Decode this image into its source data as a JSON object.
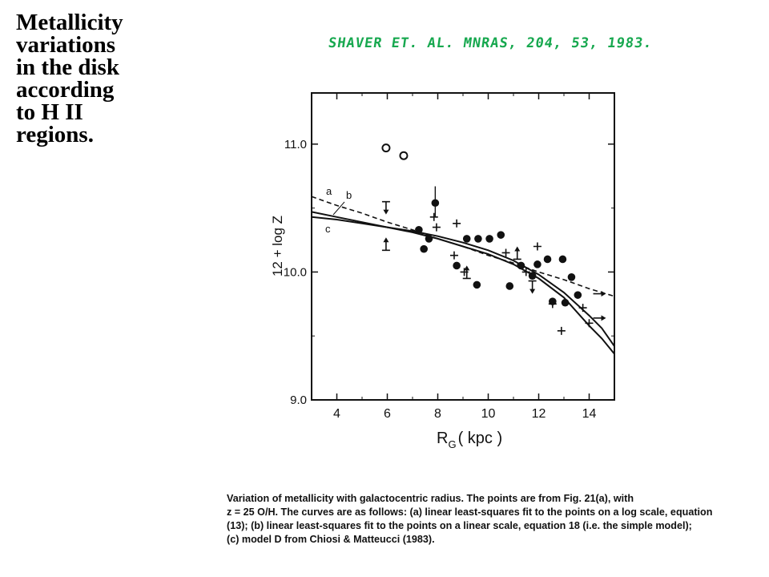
{
  "slide": {
    "title": "Metallicity\nvariations\nin the disk\naccording\nto H II\nregions.",
    "handwritten_reference": "SHAVER ET. AL.   MNRAS, 204, 53, 1983.",
    "caption_lines": [
      "Variation of metallicity with galactocentric radius. The points are from Fig. 21(a), with",
      "z = 25 O/H. The curves are as follows: (a) linear least-squares fit to the points on a log scale, equation",
      "(13); (b) linear least-squares fit to the points on a linear scale, equation 18 (i.e. the simple model);",
      "(c) model D from Chiosi & Matteucci (1983)."
    ]
  },
  "chart_data": {
    "type": "scatter",
    "xlabel_main": "R",
    "xlabel_sub": "G",
    "xlabel_unit": "( kpc )",
    "ylabel": "12 + log Z",
    "xlim": [
      3,
      15
    ],
    "ylim": [
      9.0,
      11.4
    ],
    "xticks": [
      "4",
      "6",
      "8",
      "10",
      "12",
      "14"
    ],
    "yticks": [
      "9.0",
      "10.0",
      "11.0"
    ],
    "filled_points": [
      {
        "x": 7.25,
        "y": 10.33
      },
      {
        "x": 7.45,
        "y": 10.18
      },
      {
        "x": 7.65,
        "y": 10.26
      },
      {
        "x": 7.9,
        "y": 10.54
      },
      {
        "x": 8.75,
        "y": 10.05
      },
      {
        "x": 9.55,
        "y": 9.9
      },
      {
        "x": 9.15,
        "y": 10.26
      },
      {
        "x": 9.6,
        "y": 10.26
      },
      {
        "x": 10.05,
        "y": 10.26
      },
      {
        "x": 10.5,
        "y": 10.29
      },
      {
        "x": 11.3,
        "y": 10.05
      },
      {
        "x": 11.75,
        "y": 9.97
      },
      {
        "x": 11.95,
        "y": 10.06
      },
      {
        "x": 12.35,
        "y": 10.1
      },
      {
        "x": 12.95,
        "y": 10.1
      },
      {
        "x": 13.3,
        "y": 9.96
      },
      {
        "x": 10.85,
        "y": 9.89
      },
      {
        "x": 12.55,
        "y": 9.77
      },
      {
        "x": 13.05,
        "y": 9.76
      },
      {
        "x": 13.55,
        "y": 9.82
      }
    ],
    "open_points": [
      {
        "x": 5.95,
        "y": 10.97
      },
      {
        "x": 6.65,
        "y": 10.91
      }
    ],
    "plus_points": [
      {
        "x": 7.85,
        "y": 10.43
      },
      {
        "x": 7.95,
        "y": 10.35
      },
      {
        "x": 8.75,
        "y": 10.38
      },
      {
        "x": 8.65,
        "y": 10.13
      },
      {
        "x": 9.05,
        "y": 10.0
      },
      {
        "x": 10.7,
        "y": 10.15
      },
      {
        "x": 11.95,
        "y": 10.2
      },
      {
        "x": 11.5,
        "y": 10.0
      },
      {
        "x": 12.55,
        "y": 9.75
      },
      {
        "x": 12.9,
        "y": 9.54
      },
      {
        "x": 13.75,
        "y": 9.72
      },
      {
        "x": 14.0,
        "y": 9.6
      }
    ],
    "upper_limits": [
      {
        "x": 5.95,
        "y": 10.55
      },
      {
        "x": 11.75,
        "y": 9.93
      }
    ],
    "lower_limits": [
      {
        "x": 5.95,
        "y": 10.17
      },
      {
        "x": 9.15,
        "y": 9.95
      },
      {
        "x": 11.15,
        "y": 10.1
      }
    ],
    "arrow_right_points": [
      {
        "x": 14.35,
        "y": 9.83
      },
      {
        "x": 14.35,
        "y": 9.64
      }
    ],
    "curves": [
      {
        "name": "a",
        "style": "dashed",
        "points": [
          [
            3,
            10.59
          ],
          [
            4,
            10.52
          ],
          [
            5,
            10.46
          ],
          [
            6,
            10.39
          ],
          [
            7,
            10.33
          ],
          [
            8,
            10.26
          ],
          [
            9,
            10.2
          ],
          [
            10,
            10.13
          ],
          [
            11,
            10.07
          ],
          [
            12,
            10.0
          ],
          [
            13,
            9.94
          ],
          [
            14,
            9.87
          ],
          [
            15,
            9.81
          ]
        ]
      },
      {
        "name": "b",
        "style": "solid",
        "points": [
          [
            3,
            10.47
          ],
          [
            4,
            10.43
          ],
          [
            5,
            10.39
          ],
          [
            6,
            10.35
          ],
          [
            7,
            10.31
          ],
          [
            8,
            10.26
          ],
          [
            9,
            10.2
          ],
          [
            10,
            10.14
          ],
          [
            11,
            10.06
          ],
          [
            12,
            9.95
          ],
          [
            13,
            9.8
          ],
          [
            14,
            9.58
          ],
          [
            14.5,
            9.48
          ],
          [
            15,
            9.36
          ]
        ]
      },
      {
        "name": "c",
        "style": "solid",
        "points": [
          [
            3,
            10.43
          ],
          [
            4,
            10.41
          ],
          [
            5,
            10.38
          ],
          [
            6,
            10.35
          ],
          [
            7,
            10.32
          ],
          [
            8,
            10.28
          ],
          [
            9,
            10.23
          ],
          [
            10,
            10.17
          ],
          [
            11,
            10.09
          ],
          [
            12,
            9.98
          ],
          [
            13,
            9.84
          ],
          [
            14,
            9.66
          ],
          [
            14.5,
            9.56
          ],
          [
            15,
            9.42
          ]
        ]
      }
    ],
    "curve_labels": [
      "a",
      "b",
      "c"
    ]
  }
}
